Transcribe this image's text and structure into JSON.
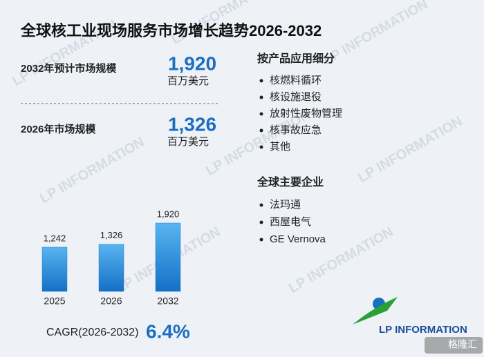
{
  "title": "全球核工业现场服务市场增长趋势2026-2032",
  "stats": [
    {
      "label": "2032年预计市场规模",
      "value": "1,920",
      "unit": "百万美元"
    },
    {
      "label": "2026年市场规模",
      "value": "1,326",
      "unit": "百万美元"
    }
  ],
  "chart_data": {
    "type": "bar",
    "categories": [
      "2025",
      "2026",
      "2032"
    ],
    "values": [
      1242,
      1326,
      1920
    ],
    "value_labels": [
      "1,242",
      "1,326",
      "1,920"
    ],
    "color": "#1e7fd0"
  },
  "cagr": {
    "label": "CAGR(2026-2032)",
    "value": "6.4%"
  },
  "segments": {
    "title": "按产品应用细分",
    "items": [
      "核燃料循环",
      "核设施退役",
      "放射性废物管理",
      "核事故应急",
      "其他"
    ]
  },
  "companies": {
    "title": "全球主要企业",
    "items": [
      "法玛通",
      "西屋电气",
      "GE Vernova"
    ]
  },
  "logo": "LP INFORMATION",
  "corner_badge": "格隆汇"
}
